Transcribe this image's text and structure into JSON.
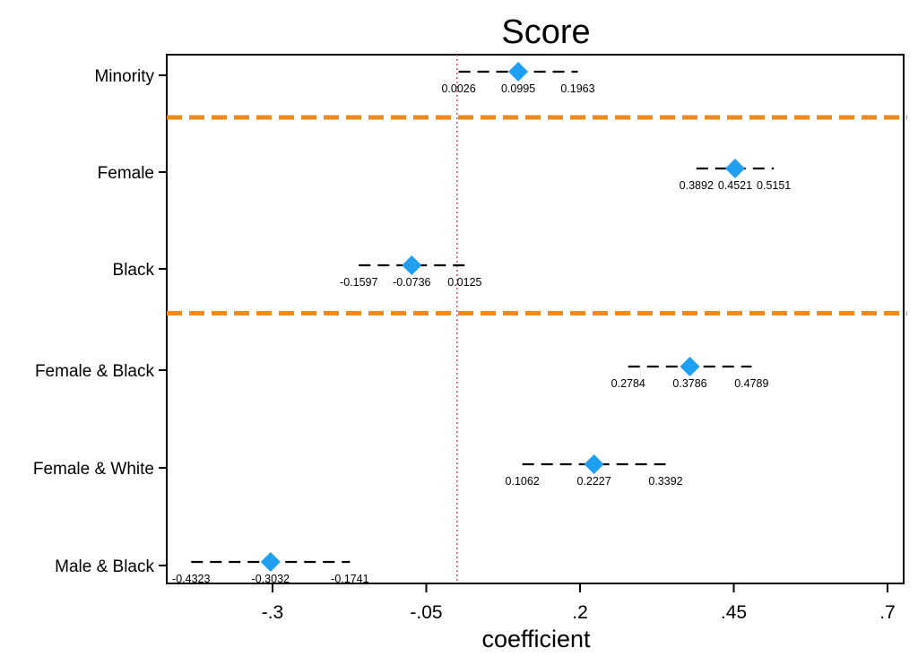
{
  "chart_data": {
    "type": "scatter",
    "title": "Score",
    "xlabel": "coefficient",
    "ylabel": "",
    "xlim": [
      -0.43,
      0.71
    ],
    "xticks": [
      -0.3,
      -0.05,
      0.2,
      0.45,
      0.7
    ],
    "xtick_labels": [
      "-.3",
      "-.05",
      ".2",
      ".45",
      ".7"
    ],
    "reference_line": 0,
    "categories": [
      "Minority",
      "Female",
      "Black",
      "Female & Black",
      "Female & White",
      "Male & Black"
    ],
    "estimates": [
      {
        "label": "Minority",
        "lower": 0.0026,
        "estimate": 0.0995,
        "upper": 0.1963,
        "lower_label": "0.0026",
        "estimate_label": "0.0995",
        "upper_label": "0.1963"
      },
      {
        "label": "Female",
        "lower": 0.3892,
        "estimate": 0.4521,
        "upper": 0.5151,
        "lower_label": "0.3892",
        "estimate_label": "0.4521",
        "upper_label": "0.5151"
      },
      {
        "label": "Black",
        "lower": -0.1597,
        "estimate": -0.0736,
        "upper": 0.0125,
        "lower_label": "-0.1597",
        "estimate_label": "-0.0736",
        "upper_label": "0.0125"
      },
      {
        "label": "Female & Black",
        "lower": 0.2784,
        "estimate": 0.3786,
        "upper": 0.4789,
        "lower_label": "0.2784",
        "estimate_label": "0.3786",
        "upper_label": "0.4789"
      },
      {
        "label": "Female & White",
        "lower": 0.1062,
        "estimate": 0.2227,
        "upper": 0.3392,
        "lower_label": "0.1062",
        "estimate_label": "0.2227",
        "upper_label": "0.3392"
      },
      {
        "label": "Male & Black",
        "lower": -0.4323,
        "estimate": -0.3032,
        "upper": -0.1741,
        "lower_label": "-0.4323",
        "estimate_label": "-0.3032",
        "upper_label": "-0.1741"
      }
    ],
    "group_separators_after": [
      "Minority",
      "Black"
    ],
    "colors": {
      "marker": "#1e9ff2",
      "interval": "#000000",
      "separator": "#f08a1c",
      "reference_line": "#e8506a"
    },
    "grid": false
  }
}
